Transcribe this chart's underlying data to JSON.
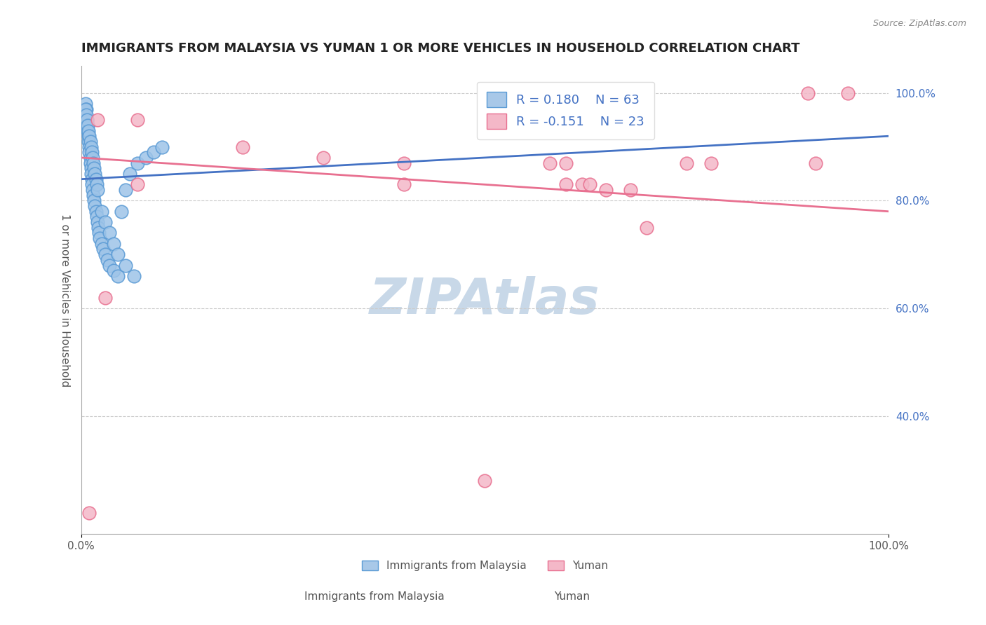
{
  "title": "IMMIGRANTS FROM MALAYSIA VS YUMAN 1 OR MORE VEHICLES IN HOUSEHOLD CORRELATION CHART",
  "source_text": "Source: ZipAtlas.com",
  "xlabel_bottom": "Immigrants from Malaysia",
  "xlabel_legend2": "Yuman",
  "ylabel": "1 or more Vehicles in Household",
  "xlim": [
    0.0,
    1.0
  ],
  "ylim": [
    0.18,
    1.05
  ],
  "xticks": [
    0.0,
    0.2,
    0.4,
    0.6,
    0.8,
    1.0
  ],
  "xtick_labels": [
    "0.0%",
    "",
    "",
    "",
    "",
    "100.0%"
  ],
  "ytick_labels_right": [
    "100.0%",
    "80.0%",
    "60.0%",
    "40.0%"
  ],
  "ytick_positions_right": [
    1.0,
    0.8,
    0.6,
    0.4
  ],
  "blue_R": 0.18,
  "blue_N": 63,
  "pink_R": -0.151,
  "pink_N": 23,
  "blue_color": "#9ec4e8",
  "blue_edge_color": "#5b9bd5",
  "pink_color": "#f4b8c8",
  "pink_edge_color": "#e87090",
  "blue_line_color": "#4472c4",
  "pink_line_color": "#e87090",
  "watermark_color": "#c8d8e8",
  "legend_box_blue": "#a8c8e8",
  "legend_text_color": "#4472c4",
  "title_color": "#222222",
  "grid_color": "#cccccc",
  "blue_scatter_x": [
    0.005,
    0.005,
    0.006,
    0.007,
    0.008,
    0.008,
    0.009,
    0.009,
    0.01,
    0.01,
    0.011,
    0.011,
    0.012,
    0.012,
    0.013,
    0.013,
    0.014,
    0.015,
    0.016,
    0.017,
    0.018,
    0.019,
    0.02,
    0.021,
    0.022,
    0.023,
    0.025,
    0.027,
    0.03,
    0.032,
    0.035,
    0.04,
    0.045,
    0.05,
    0.055,
    0.06,
    0.07,
    0.08,
    0.09,
    0.1,
    0.005,
    0.006,
    0.007,
    0.008,
    0.009,
    0.01,
    0.011,
    0.012,
    0.013,
    0.014,
    0.015,
    0.016,
    0.017,
    0.018,
    0.019,
    0.02,
    0.025,
    0.03,
    0.035,
    0.04,
    0.045,
    0.055,
    0.065
  ],
  "blue_scatter_y": [
    0.98,
    0.96,
    0.97,
    0.95,
    0.94,
    0.93,
    0.92,
    0.91,
    0.9,
    0.89,
    0.88,
    0.87,
    0.86,
    0.85,
    0.84,
    0.83,
    0.82,
    0.81,
    0.8,
    0.79,
    0.78,
    0.77,
    0.76,
    0.75,
    0.74,
    0.73,
    0.72,
    0.71,
    0.7,
    0.69,
    0.68,
    0.67,
    0.66,
    0.78,
    0.82,
    0.85,
    0.87,
    0.88,
    0.89,
    0.9,
    0.97,
    0.96,
    0.95,
    0.94,
    0.93,
    0.92,
    0.91,
    0.9,
    0.89,
    0.88,
    0.87,
    0.86,
    0.85,
    0.84,
    0.83,
    0.82,
    0.78,
    0.76,
    0.74,
    0.72,
    0.7,
    0.68,
    0.66
  ],
  "pink_scatter_x": [
    0.01,
    0.02,
    0.07,
    0.2,
    0.4,
    0.4,
    0.6,
    0.62,
    0.65,
    0.68,
    0.7,
    0.78,
    0.9,
    0.91,
    0.03,
    0.07,
    0.3,
    0.58,
    0.6,
    0.75,
    0.5,
    0.63,
    0.95
  ],
  "pink_scatter_y": [
    0.22,
    0.95,
    0.95,
    0.9,
    0.87,
    0.83,
    0.87,
    0.83,
    0.82,
    0.82,
    0.75,
    0.87,
    1.0,
    0.87,
    0.62,
    0.83,
    0.88,
    0.87,
    0.83,
    0.87,
    0.28,
    0.83,
    1.0
  ],
  "blue_trend_x": [
    0.0,
    1.0
  ],
  "blue_trend_y": [
    0.84,
    0.92
  ],
  "pink_trend_x": [
    0.0,
    1.0
  ],
  "pink_trend_y": [
    0.88,
    0.78
  ]
}
